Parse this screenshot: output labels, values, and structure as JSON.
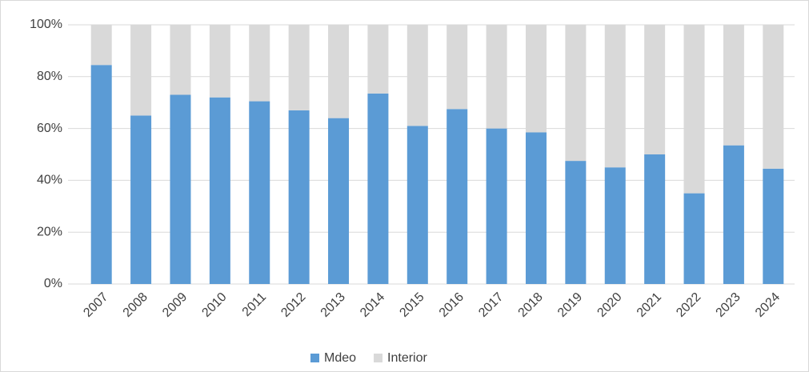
{
  "chart_data": {
    "type": "stacked_bar",
    "categories": [
      "2007",
      "2008",
      "2009",
      "2010",
      "2011",
      "2012",
      "2013",
      "2014",
      "2015",
      "2016",
      "2017",
      "2018",
      "2019",
      "2020",
      "2021",
      "2022",
      "2023",
      "2024"
    ],
    "series": [
      {
        "name": "Mdeo",
        "color": "#5b9bd5",
        "values": [
          84.5,
          65,
          73,
          72,
          70.5,
          67,
          64,
          73.5,
          61,
          67.5,
          60,
          58.5,
          47.5,
          45,
          50,
          35,
          53.5,
          44.5
        ]
      },
      {
        "name": "Interior",
        "color": "#d9d9d9",
        "values": [
          15.5,
          35,
          27,
          28,
          29.5,
          33,
          36,
          26.5,
          39,
          32.5,
          40,
          41.5,
          52.5,
          55,
          50,
          65,
          46.5,
          55.5
        ]
      }
    ],
    "ylim": [
      0,
      100
    ],
    "yticks": [
      {
        "value": 0,
        "label": "0%"
      },
      {
        "value": 20,
        "label": "20%"
      },
      {
        "value": 40,
        "label": "40%"
      },
      {
        "value": 60,
        "label": "60%"
      },
      {
        "value": 80,
        "label": "80%"
      },
      {
        "value": 100,
        "label": "100%"
      }
    ],
    "grid": true,
    "legend": "bottom"
  }
}
